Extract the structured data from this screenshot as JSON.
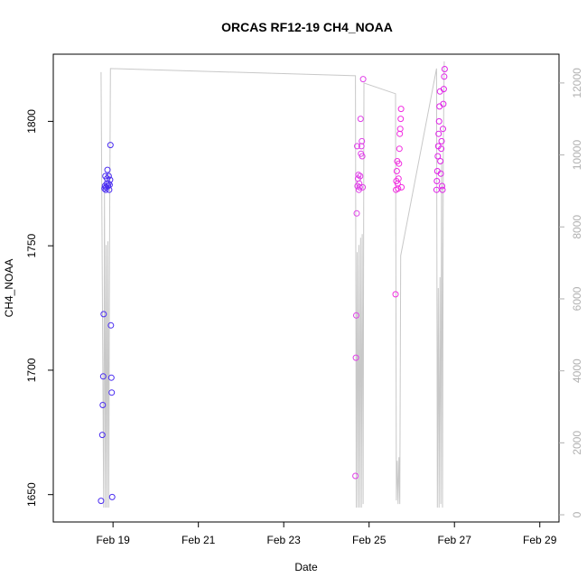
{
  "chart_data": {
    "type": "scatter",
    "title": "ORCAS RF12-19 CH4_NOAA",
    "xlabel": "Date",
    "ylabel": "CH4_NOAA",
    "x_unit": "days since Feb 18 00:00",
    "xlim": [
      17.6,
      29.45
    ],
    "ylim": [
      1639,
      1827
    ],
    "y2lim": [
      -200,
      12800
    ],
    "x_ticks": [
      {
        "label": "Feb 19",
        "value": 1.0
      },
      {
        "label": "Feb 21",
        "value": 3.0
      },
      {
        "label": "Feb 23",
        "value": 5.0
      },
      {
        "label": "Feb 25",
        "value": 7.0
      },
      {
        "label": "Feb 27",
        "value": 9.0
      },
      {
        "label": "Feb 29",
        "value": 11.0
      }
    ],
    "y_ticks": [
      {
        "label": "1650",
        "value": 1650
      },
      {
        "label": "1700",
        "value": 1700
      },
      {
        "label": "1750",
        "value": 1750
      },
      {
        "label": "1800",
        "value": 1800
      }
    ],
    "y2_ticks": [
      {
        "label": "0",
        "value": 0
      },
      {
        "label": "2000",
        "value": 2000
      },
      {
        "label": "4000",
        "value": 4000
      },
      {
        "label": "6000",
        "value": 6000
      },
      {
        "label": "8000",
        "value": 8000
      },
      {
        "label": "10000",
        "value": 10000
      },
      {
        "label": "12000",
        "value": 12000
      }
    ],
    "colors": {
      "altitude": "#c8c8c8",
      "flight1": "#4a2df0",
      "flight2": "#e040e8",
      "flight3": "#f22ce0",
      "flight4": "#e022e8"
    },
    "altitude_series": [
      [
        0.72,
        12300
      ],
      [
        0.78,
        200
      ],
      [
        0.8,
        9000
      ],
      [
        0.82,
        200
      ],
      [
        0.84,
        7500
      ],
      [
        0.86,
        200
      ],
      [
        0.88,
        7600
      ],
      [
        0.9,
        200
      ],
      [
        0.92,
        8000
      ],
      [
        0.94,
        12400
      ],
      [
        6.68,
        12200
      ],
      [
        6.7,
        200
      ],
      [
        6.72,
        7300
      ],
      [
        6.74,
        200
      ],
      [
        6.76,
        7500
      ],
      [
        6.78,
        200
      ],
      [
        6.8,
        7700
      ],
      [
        6.82,
        200
      ],
      [
        6.84,
        7800
      ],
      [
        6.86,
        300
      ],
      [
        6.88,
        12000
      ],
      [
        7.62,
        11700
      ],
      [
        7.64,
        400
      ],
      [
        7.66,
        1500
      ],
      [
        7.68,
        300
      ],
      [
        7.7,
        1600
      ],
      [
        7.72,
        300
      ],
      [
        7.74,
        7200
      ],
      [
        8.58,
        12400
      ],
      [
        8.6,
        200
      ],
      [
        8.62,
        6300
      ],
      [
        8.64,
        200
      ],
      [
        8.66,
        6600
      ],
      [
        8.68,
        300
      ],
      [
        8.7,
        9800
      ],
      [
        8.72,
        200
      ],
      [
        8.74,
        10200
      ],
      [
        8.76,
        12600
      ]
    ],
    "series": [
      {
        "color_key": "flight1",
        "points": [
          [
            0.72,
            1647.5
          ],
          [
            0.75,
            1674
          ],
          [
            0.76,
            1686
          ],
          [
            0.77,
            1697.5
          ],
          [
            0.78,
            1722.5
          ],
          [
            0.8,
            1773
          ],
          [
            0.81,
            1774
          ],
          [
            0.82,
            1778
          ],
          [
            0.83,
            1772.5
          ],
          [
            0.84,
            1773.5
          ],
          [
            0.85,
            1775
          ],
          [
            0.86,
            1777
          ],
          [
            0.87,
            1780.5
          ],
          [
            0.88,
            1774
          ],
          [
            0.89,
            1775
          ],
          [
            0.9,
            1778
          ],
          [
            0.91,
            1772.5
          ],
          [
            0.92,
            1774.5
          ],
          [
            0.93,
            1776.5
          ],
          [
            0.94,
            1790.5
          ],
          [
            0.95,
            1718
          ],
          [
            0.96,
            1697
          ],
          [
            0.97,
            1691
          ],
          [
            0.98,
            1649
          ]
        ]
      },
      {
        "color_key": "flight2",
        "points": [
          [
            6.68,
            1657.5
          ],
          [
            6.69,
            1705
          ],
          [
            6.7,
            1722
          ],
          [
            6.71,
            1763
          ],
          [
            6.72,
            1790
          ],
          [
            6.73,
            1774
          ],
          [
            6.74,
            1777
          ],
          [
            6.75,
            1778.5
          ],
          [
            6.76,
            1772.5
          ],
          [
            6.77,
            1775
          ],
          [
            6.78,
            1773.5
          ],
          [
            6.79,
            1778
          ],
          [
            6.8,
            1801
          ],
          [
            6.81,
            1787
          ],
          [
            6.82,
            1790
          ],
          [
            6.83,
            1792
          ],
          [
            6.84,
            1786
          ],
          [
            6.85,
            1773.5
          ],
          [
            6.86,
            1817
          ]
        ]
      },
      {
        "color_key": "flight3",
        "points": [
          [
            7.62,
            1730.5
          ],
          [
            7.63,
            1772.5
          ],
          [
            7.64,
            1776
          ],
          [
            7.65,
            1780
          ],
          [
            7.66,
            1784
          ],
          [
            7.67,
            1775
          ],
          [
            7.68,
            1773
          ],
          [
            7.69,
            1777
          ],
          [
            7.7,
            1783
          ],
          [
            7.71,
            1789
          ],
          [
            7.72,
            1795
          ],
          [
            7.73,
            1797
          ],
          [
            7.74,
            1801
          ],
          [
            7.75,
            1805
          ],
          [
            7.76,
            1773.5
          ]
        ]
      },
      {
        "color_key": "flight4",
        "points": [
          [
            8.58,
            1772.5
          ],
          [
            8.59,
            1776
          ],
          [
            8.6,
            1780
          ],
          [
            8.61,
            1786
          ],
          [
            8.62,
            1790
          ],
          [
            8.63,
            1795
          ],
          [
            8.64,
            1800
          ],
          [
            8.65,
            1806
          ],
          [
            8.66,
            1812
          ],
          [
            8.67,
            1784
          ],
          [
            8.68,
            1779
          ],
          [
            8.69,
            1789
          ],
          [
            8.7,
            1792
          ],
          [
            8.71,
            1774
          ],
          [
            8.72,
            1772.5
          ],
          [
            8.73,
            1797
          ],
          [
            8.74,
            1807
          ],
          [
            8.75,
            1813
          ],
          [
            8.76,
            1818
          ],
          [
            8.77,
            1821
          ]
        ]
      }
    ]
  }
}
